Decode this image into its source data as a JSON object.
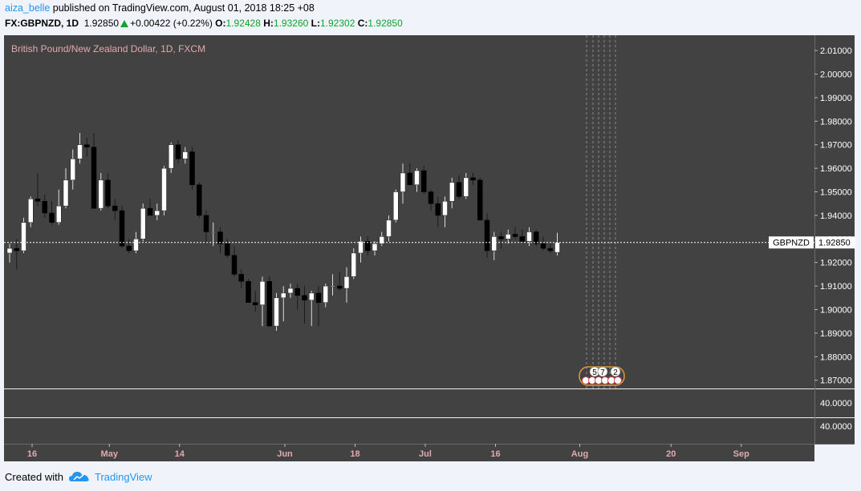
{
  "header": {
    "user": "aiza_belle",
    "published_text": "published on TradingView.com, August 01, 2018 18:25 +08",
    "symbol": "FX:GBPNZD, 1D",
    "last": "1.92850",
    "change": "+0.00422 (+0.22%)",
    "o_label": "O:",
    "o_value": "1.92428",
    "h_label": "H:",
    "h_value": "1.93260",
    "l_label": "L:",
    "l_value": "1.92302",
    "c_label": "C:",
    "c_value": "1.92850",
    "up_color": "#0aa52d"
  },
  "footer": {
    "created_with": "Created with",
    "brand": "TradingView",
    "logo_icon": "tradingview-cloud-icon"
  },
  "colors": {
    "chart_bg": "#424242",
    "up_candle": "#ffffff",
    "down_candle": "#000000",
    "wick": "#1a1a1a",
    "axis_text": "#ffffff",
    "price_line": "#ffffff",
    "time_axis_text": "#e1a9b0",
    "event_marker": "#e09a34"
  },
  "chart_data": {
    "type": "candlestick",
    "title": "British Pound/New Zealand Dollar, 1D, FXCM",
    "symbol_label": "GBPNZD",
    "last_price": "1.92850",
    "y_ticks": [
      "2.01000",
      "2.00000",
      "1.99000",
      "1.98000",
      "1.97000",
      "1.96000",
      "1.95000",
      "1.94000",
      "1.93000",
      "1.92000",
      "1.91000",
      "1.90000",
      "1.89000",
      "1.88000",
      "1.87000"
    ],
    "ylim": [
      1.8665,
      2.0165
    ],
    "x_ticks": [
      {
        "label": "16",
        "bar": 0
      },
      {
        "label": "May",
        "bar": 11
      },
      {
        "label": "14",
        "bar": 21
      },
      {
        "label": "Jun",
        "bar": 36
      },
      {
        "label": "18",
        "bar": 46
      },
      {
        "label": "Jul",
        "bar": 56
      },
      {
        "label": "16",
        "bar": 66
      },
      {
        "label": "Aug",
        "bar": 78
      },
      {
        "label": "20",
        "bar": 91
      },
      {
        "label": "Sep",
        "bar": 101
      }
    ],
    "event_badges": [
      "5",
      "7",
      "2"
    ],
    "indicator_pane": {
      "y_ticks": [
        "40.0000",
        "40.0000"
      ]
    },
    "candles": [
      [
        1.924,
        1.928,
        1.92,
        1.926
      ],
      [
        1.926,
        1.93,
        1.917,
        1.925
      ],
      [
        1.925,
        1.939,
        1.924,
        1.937
      ],
      [
        1.937,
        1.948,
        1.935,
        1.947
      ],
      [
        1.947,
        1.958,
        1.944,
        1.946
      ],
      [
        1.946,
        1.949,
        1.939,
        1.941
      ],
      [
        1.941,
        1.946,
        1.936,
        1.937
      ],
      [
        1.937,
        1.951,
        1.936,
        1.944
      ],
      [
        1.944,
        1.96,
        1.943,
        1.955
      ],
      [
        1.955,
        1.968,
        1.951,
        1.964
      ],
      [
        1.964,
        1.975,
        1.962,
        1.97
      ],
      [
        1.97,
        1.973,
        1.965,
        1.969
      ],
      [
        1.969,
        1.975,
        1.943,
        1.943
      ],
      [
        1.943,
        1.958,
        1.942,
        1.955
      ],
      [
        1.955,
        1.958,
        1.943,
        1.944
      ],
      [
        1.944,
        1.947,
        1.938,
        1.942
      ],
      [
        1.942,
        1.944,
        1.926,
        1.927
      ],
      [
        1.927,
        1.93,
        1.924,
        1.925
      ],
      [
        1.925,
        1.933,
        1.924,
        1.93
      ],
      [
        1.93,
        1.945,
        1.929,
        1.943
      ],
      [
        1.943,
        1.947,
        1.94,
        1.94
      ],
      [
        1.94,
        1.945,
        1.938,
        1.942
      ],
      [
        1.942,
        1.961,
        1.94,
        1.96
      ],
      [
        1.96,
        1.971,
        1.958,
        1.97
      ],
      [
        1.97,
        1.972,
        1.962,
        1.964
      ],
      [
        1.964,
        1.969,
        1.962,
        1.967
      ],
      [
        1.967,
        1.969,
        1.951,
        1.953
      ],
      [
        1.953,
        1.954,
        1.939,
        1.94
      ],
      [
        1.94,
        1.942,
        1.928,
        1.933
      ],
      [
        1.933,
        1.937,
        1.927,
        1.933
      ],
      [
        1.933,
        1.935,
        1.924,
        1.928
      ],
      [
        1.928,
        1.93,
        1.922,
        1.923
      ],
      [
        1.923,
        1.927,
        1.914,
        1.915
      ],
      [
        1.915,
        1.917,
        1.909,
        1.912
      ],
      [
        1.912,
        1.913,
        1.903,
        1.903
      ],
      [
        1.903,
        1.908,
        1.899,
        1.902
      ],
      [
        1.902,
        1.914,
        1.893,
        1.912
      ],
      [
        1.912,
        1.914,
        1.893,
        1.893
      ],
      [
        1.893,
        1.907,
        1.891,
        1.905
      ],
      [
        1.905,
        1.91,
        1.895,
        1.907
      ],
      [
        1.907,
        1.911,
        1.905,
        1.909
      ],
      [
        1.909,
        1.911,
        1.9,
        1.906
      ],
      [
        1.906,
        1.91,
        1.894,
        1.904
      ],
      [
        1.904,
        1.908,
        1.893,
        1.907
      ],
      [
        1.907,
        1.91,
        1.893,
        1.903
      ],
      [
        1.903,
        1.911,
        1.901,
        1.91
      ],
      [
        1.91,
        1.915,
        1.906,
        1.91
      ],
      [
        1.91,
        1.916,
        1.908,
        1.909
      ],
      [
        1.909,
        1.918,
        1.903,
        1.914
      ],
      [
        1.914,
        1.926,
        1.913,
        1.924
      ],
      [
        1.924,
        1.931,
        1.92,
        1.929
      ],
      [
        1.929,
        1.931,
        1.923,
        1.925
      ],
      [
        1.925,
        1.929,
        1.923,
        1.928
      ],
      [
        1.928,
        1.933,
        1.927,
        1.931
      ],
      [
        1.931,
        1.94,
        1.929,
        1.938
      ],
      [
        1.938,
        1.951,
        1.937,
        1.95
      ],
      [
        1.95,
        1.962,
        1.945,
        1.958
      ],
      [
        1.958,
        1.962,
        1.953,
        1.953
      ],
      [
        1.953,
        1.96,
        1.95,
        1.959
      ],
      [
        1.959,
        1.961,
        1.949,
        1.95
      ],
      [
        1.95,
        1.951,
        1.942,
        1.945
      ],
      [
        1.945,
        1.948,
        1.935,
        1.94
      ],
      [
        1.94,
        1.948,
        1.935,
        1.946
      ],
      [
        1.946,
        1.956,
        1.943,
        1.954
      ],
      [
        1.954,
        1.957,
        1.947,
        1.948
      ],
      [
        1.948,
        1.958,
        1.947,
        1.956
      ],
      [
        1.956,
        1.958,
        1.953,
        1.955
      ],
      [
        1.955,
        1.956,
        1.938,
        1.938
      ],
      [
        1.938,
        1.941,
        1.922,
        1.925
      ],
      [
        1.925,
        1.933,
        1.921,
        1.931
      ],
      [
        1.931,
        1.933,
        1.926,
        1.93
      ],
      [
        1.93,
        1.934,
        1.928,
        1.932
      ],
      [
        1.932,
        1.935,
        1.93,
        1.931
      ],
      [
        1.931,
        1.934,
        1.928,
        1.929
      ],
      [
        1.929,
        1.935,
        1.927,
        1.933
      ],
      [
        1.933,
        1.934,
        1.927,
        1.928
      ],
      [
        1.928,
        1.931,
        1.925,
        1.926
      ],
      [
        1.926,
        1.928,
        1.924,
        1.925
      ],
      [
        1.9243,
        1.9326,
        1.923,
        1.9285
      ]
    ]
  }
}
